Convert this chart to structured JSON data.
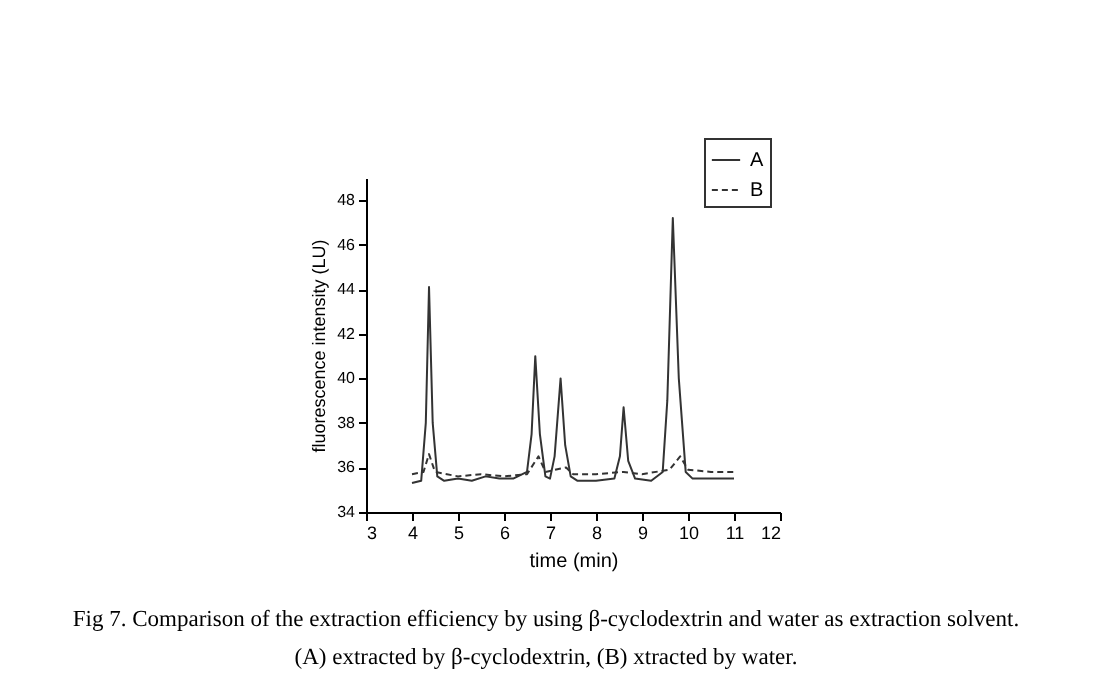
{
  "chart_data": {
    "type": "line",
    "xlabel": "time (min)",
    "ylabel": "fluorescence intensity (LU)",
    "xlim": [
      3,
      12
    ],
    "ylim": [
      34,
      49
    ],
    "xticks": [
      3,
      4,
      5,
      6,
      7,
      8,
      9,
      10,
      11,
      12
    ],
    "yticks": [
      34,
      36,
      38,
      40,
      42,
      44,
      46,
      48
    ],
    "grid": false,
    "legend": "top right",
    "marker": "none",
    "series": [
      {
        "name": "A",
        "color": "#333333",
        "line_style": "solid",
        "x": [
          4.0,
          4.2,
          4.3,
          4.37,
          4.45,
          4.55,
          4.7,
          5.0,
          5.3,
          5.6,
          5.9,
          6.2,
          6.5,
          6.6,
          6.68,
          6.78,
          6.9,
          7.0,
          7.1,
          7.23,
          7.33,
          7.45,
          7.6,
          8.0,
          8.4,
          8.52,
          8.6,
          8.7,
          8.85,
          9.2,
          9.45,
          9.55,
          9.67,
          9.8,
          9.95,
          10.1,
          10.5,
          11.0
        ],
        "values": [
          35.3,
          35.4,
          38,
          44.1,
          38,
          35.6,
          35.4,
          35.5,
          35.4,
          35.6,
          35.5,
          35.5,
          35.8,
          37.5,
          41.0,
          37.5,
          35.6,
          35.5,
          36.5,
          40.0,
          37,
          35.6,
          35.4,
          35.4,
          35.5,
          36.5,
          38.7,
          36.3,
          35.5,
          35.4,
          35.8,
          39,
          47.2,
          40,
          35.8,
          35.5,
          35.5,
          35.5
        ]
      },
      {
        "name": "B",
        "color": "#333333",
        "line_style": "dashed",
        "x": [
          4.0,
          4.25,
          4.37,
          4.5,
          5.0,
          5.5,
          6.0,
          6.5,
          6.75,
          6.9,
          7.35,
          7.5,
          8.0,
          8.6,
          9.0,
          9.6,
          9.83,
          10.0,
          10.5,
          11.0
        ],
        "values": [
          35.7,
          35.8,
          36.6,
          35.8,
          35.6,
          35.7,
          35.6,
          35.7,
          36.5,
          35.8,
          36.0,
          35.7,
          35.7,
          35.8,
          35.7,
          35.9,
          36.5,
          35.9,
          35.8,
          35.8
        ]
      }
    ],
    "annotations": [
      "Fig 7. Comparison of the extraction efficiency by using β-cyclodextrin and water as extraction solvent.",
      "(A) extracted by β-cyclodextrin, (B) xtracted by water."
    ]
  }
}
